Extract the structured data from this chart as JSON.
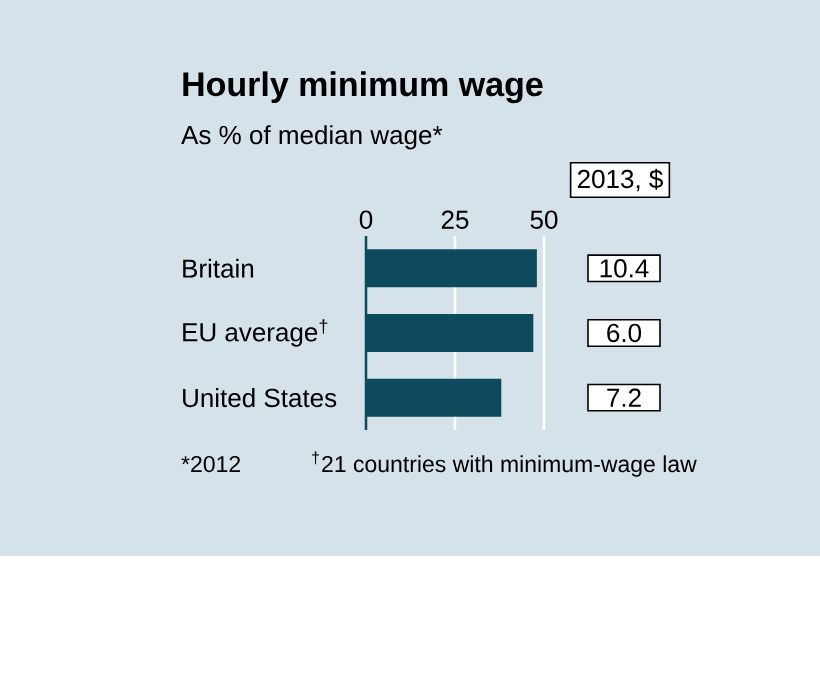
{
  "chart_data": {
    "type": "bar",
    "orientation": "horizontal",
    "title": "Hourly minimum wage",
    "subtitle": "As % of median wage*",
    "categories": [
      "Britain",
      "EU average$^{†}$",
      "United States"
    ],
    "values": [
      48,
      47,
      38
    ],
    "color": "#0e4a5e",
    "xlim": [
      0,
      50
    ],
    "xticks": [
      0,
      25,
      50
    ],
    "grid": "x",
    "annotations": [
      "2013, $",
      "10.4",
      "6.0",
      "7.2",
      "*2012",
      "$^{†}$21 countries with minimum-wage law"
    ]
  }
}
